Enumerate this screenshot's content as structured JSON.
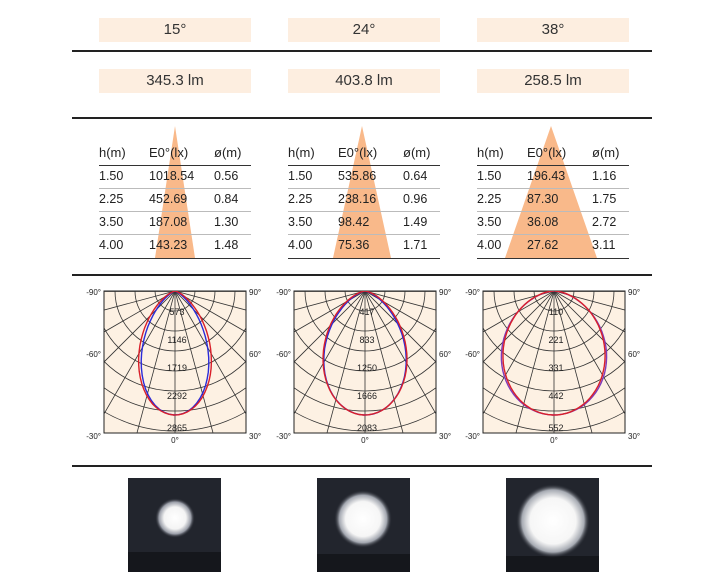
{
  "columns": [
    {
      "beam_angle": "15°",
      "lumens": "345.3 lm",
      "table": {
        "headers": [
          "h(m)",
          "E0°(lx)",
          "ø(m)"
        ],
        "rows": [
          [
            "1.50",
            "1018.54",
            "0.56"
          ],
          [
            "2.25",
            "452.69",
            "0.84"
          ],
          [
            "3.50",
            "187.08",
            "1.30"
          ],
          [
            "4.00",
            "143.23",
            "1.48"
          ]
        ]
      },
      "polar": {
        "left_angles": [
          "-90°",
          "-60°",
          "-30°"
        ],
        "right_angles": [
          "90°",
          "60°",
          "30°"
        ],
        "bottom_center": "0°",
        "rings": [
          "573",
          "1146",
          "1719",
          "2292",
          "2865"
        ]
      }
    },
    {
      "beam_angle": "24°",
      "lumens": "403.8 lm",
      "table": {
        "headers": [
          "h(m)",
          "E0°(lx)",
          "ø(m)"
        ],
        "rows": [
          [
            "1.50",
            "535.86",
            "0.64"
          ],
          [
            "2.25",
            "238.16",
            "0.96"
          ],
          [
            "3.50",
            "98.42",
            "1.49"
          ],
          [
            "4.00",
            "75.36",
            "1.71"
          ]
        ]
      },
      "polar": {
        "left_angles": [
          "-90°",
          "-60°",
          "-30°"
        ],
        "right_angles": [
          "90°",
          "60°",
          "30°"
        ],
        "bottom_center": "0°",
        "rings": [
          "417",
          "833",
          "1250",
          "1666",
          "2083"
        ]
      }
    },
    {
      "beam_angle": "38°",
      "lumens": "258.5 lm",
      "table": {
        "headers": [
          "h(m)",
          "E0°(lx)",
          "ø(m)"
        ],
        "rows": [
          [
            "1.50",
            "196.43",
            "1.16"
          ],
          [
            "2.25",
            "87.30",
            "1.75"
          ],
          [
            "3.50",
            "36.08",
            "2.72"
          ],
          [
            "4.00",
            "27.62",
            "3.11"
          ]
        ]
      },
      "polar": {
        "left_angles": [
          "-90°",
          "-60°",
          "-30°"
        ],
        "right_angles": [
          "90°",
          "60°",
          "30°"
        ],
        "bottom_center": "0°",
        "rings": [
          "110",
          "221",
          "331",
          "442",
          "552"
        ]
      }
    }
  ],
  "colors": {
    "accent": "#f9b98a",
    "pill_bg": "#fdeee0",
    "grid_bg": "#fdf1e3",
    "curve_blue": "#2b2bd8",
    "curve_red": "#d91f2a",
    "curve_purple": "#7d3bbb"
  }
}
